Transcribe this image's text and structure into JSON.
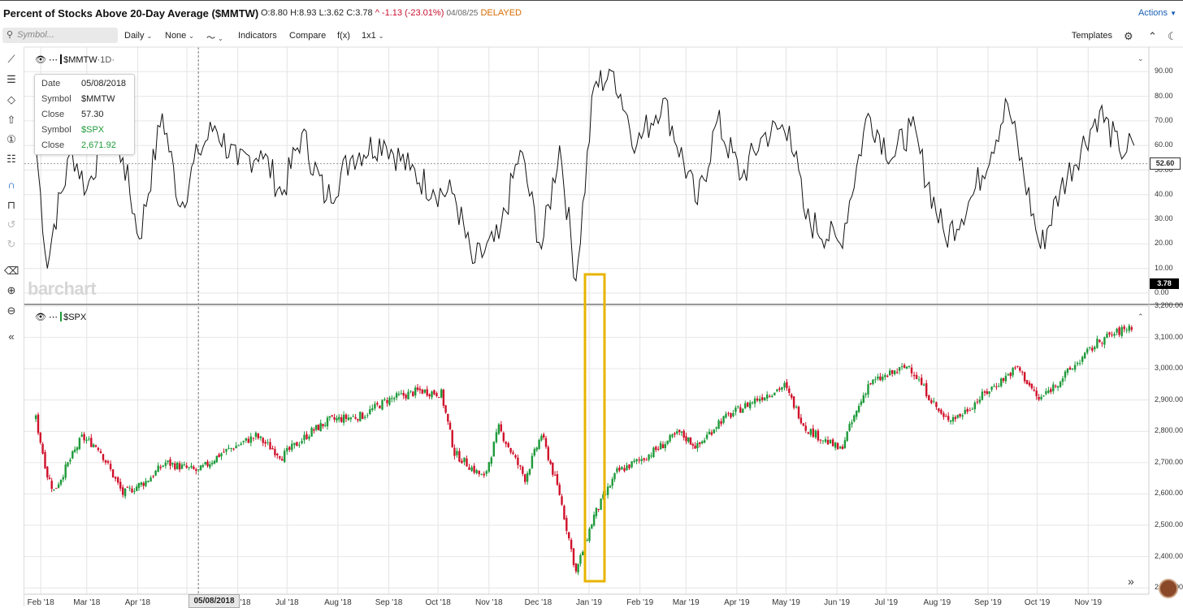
{
  "header": {
    "title": "Percent of Stocks Above 20-Day Average ($MMTW)",
    "open": "O:8.80",
    "high": "H:8.93",
    "low": "L:3.62",
    "close": "C:3.78",
    "change": "^ -1.13 (-23.01%)",
    "date": "04/08/25",
    "status": "DELAYED",
    "actions_label": "Actions"
  },
  "toolbar": {
    "search_placeholder": "Symbol...",
    "period": "Daily",
    "overlay": "None",
    "indicators": "Indicators",
    "compare": "Compare",
    "fx": "f(x)",
    "layout": "1x1",
    "templates": "Templates"
  },
  "pane_top": {
    "symbol": "$MMTW",
    "interval": "·1D·",
    "last_label": "52.60",
    "current_label": "3.78"
  },
  "pane_bottom": {
    "symbol": "$SPX"
  },
  "tooltip": {
    "date_key": "Date",
    "date_val": "05/08/2018",
    "sym1_key": "Symbol",
    "sym1_val": "$MMTW",
    "close1_key": "Close",
    "close1_val": "57.30",
    "sym2_key": "Symbol",
    "sym2_val": "$SPX",
    "close2_key": "Close",
    "close2_val": "2,671.92"
  },
  "watermark": "barchart",
  "crosshair_date": "05/08/2018",
  "x_labels": [
    "Feb '18",
    "Mar '18",
    "Apr '18",
    "Jun '18",
    "Jul '18",
    "Aug '18",
    "Sep '18",
    "Oct '18",
    "Nov '18",
    "Dec '18",
    "Jan '19",
    "Feb '19",
    "Mar '19",
    "Apr '19",
    "May '19",
    "Jun '19",
    "Jul '19",
    "Aug '19",
    "Sep '19",
    "Oct '19",
    "Nov '19"
  ],
  "y_top_labels": [
    "90.00",
    "80.00",
    "70.00",
    "60.00",
    "50.00",
    "40.00",
    "30.00",
    "20.00",
    "10.00",
    "0.00"
  ],
  "y_bottom_labels": [
    "3,200.00",
    "3,100.00",
    "3,000.00",
    "2,900.00",
    "2,800.00",
    "2,700.00",
    "2,600.00",
    "2,500.00",
    "2,400.00",
    "2,300.00"
  ],
  "colors": {
    "up": "#1e9a3a",
    "down": "#d0102a",
    "highlight": "#e8b400",
    "accent": "#1a5fb4"
  },
  "chart_data": [
    {
      "type": "line",
      "name": "$MMTW",
      "ylim": [
        0,
        95
      ],
      "x": [
        "2018-01-29",
        "2018-02-05",
        "2018-02-09",
        "2018-02-20",
        "2018-03-01",
        "2018-03-12",
        "2018-03-23",
        "2018-04-02",
        "2018-04-16",
        "2018-04-27",
        "2018-05-08",
        "2018-05-18",
        "2018-06-01",
        "2018-06-15",
        "2018-06-28",
        "2018-07-10",
        "2018-07-25",
        "2018-08-10",
        "2018-08-29",
        "2018-09-14",
        "2018-09-28",
        "2018-10-11",
        "2018-10-22",
        "2018-11-07",
        "2018-11-20",
        "2018-12-03",
        "2018-12-14",
        "2018-12-24",
        "2019-01-04",
        "2019-01-16",
        "2019-01-30",
        "2019-02-15",
        "2019-03-08",
        "2019-03-20",
        "2019-04-04",
        "2019-04-17",
        "2019-05-03",
        "2019-05-13",
        "2019-06-03",
        "2019-06-20",
        "2019-07-05",
        "2019-07-16",
        "2019-08-06",
        "2019-08-23",
        "2019-09-13",
        "2019-10-03",
        "2019-10-15",
        "2019-11-08",
        "2019-11-20",
        "2019-11-29"
      ],
      "values": [
        60,
        10,
        28,
        58,
        42,
        65,
        55,
        22,
        73,
        35,
        57,
        68,
        52,
        58,
        40,
        65,
        38,
        56,
        62,
        50,
        42,
        40,
        12,
        22,
        58,
        18,
        60,
        5,
        84,
        90,
        60,
        79,
        36,
        70,
        47,
        64,
        68,
        30,
        20,
        73,
        55,
        68,
        22,
        40,
        77,
        18,
        42,
        74,
        58,
        60
      ]
    },
    {
      "type": "candlestick",
      "name": "$SPX",
      "ylim": [
        2310,
        3210
      ],
      "x": [
        "2018-01-29",
        "2018-02-05",
        "2018-02-09",
        "2018-02-26",
        "2018-03-08",
        "2018-03-23",
        "2018-04-06",
        "2018-04-18",
        "2018-05-08",
        "2018-05-22",
        "2018-06-12",
        "2018-06-28",
        "2018-07-16",
        "2018-07-27",
        "2018-08-16",
        "2018-08-31",
        "2018-09-20",
        "2018-10-03",
        "2018-10-11",
        "2018-10-29",
        "2018-11-07",
        "2018-11-23",
        "2018-12-03",
        "2018-12-14",
        "2018-12-24",
        "2019-01-04",
        "2019-01-18",
        "2019-02-05",
        "2019-02-25",
        "2019-03-08",
        "2019-03-21",
        "2019-04-12",
        "2019-04-30",
        "2019-05-13",
        "2019-06-03",
        "2019-06-20",
        "2019-07-15",
        "2019-08-05",
        "2019-08-15",
        "2019-08-30",
        "2019-09-19",
        "2019-10-02",
        "2019-10-18",
        "2019-11-08",
        "2019-11-29"
      ],
      "values": [
        2840,
        2660,
        2610,
        2780,
        2750,
        2600,
        2640,
        2700,
        2671.92,
        2730,
        2785,
        2720,
        2800,
        2835,
        2850,
        2900,
        2930,
        2920,
        2730,
        2650,
        2810,
        2650,
        2790,
        2600,
        2350,
        2530,
        2670,
        2720,
        2795,
        2750,
        2830,
        2900,
        2945,
        2810,
        2740,
        2950,
        3010,
        2840,
        2850,
        2920,
        3005,
        2900,
        2980,
        3090,
        3140
      ]
    }
  ]
}
